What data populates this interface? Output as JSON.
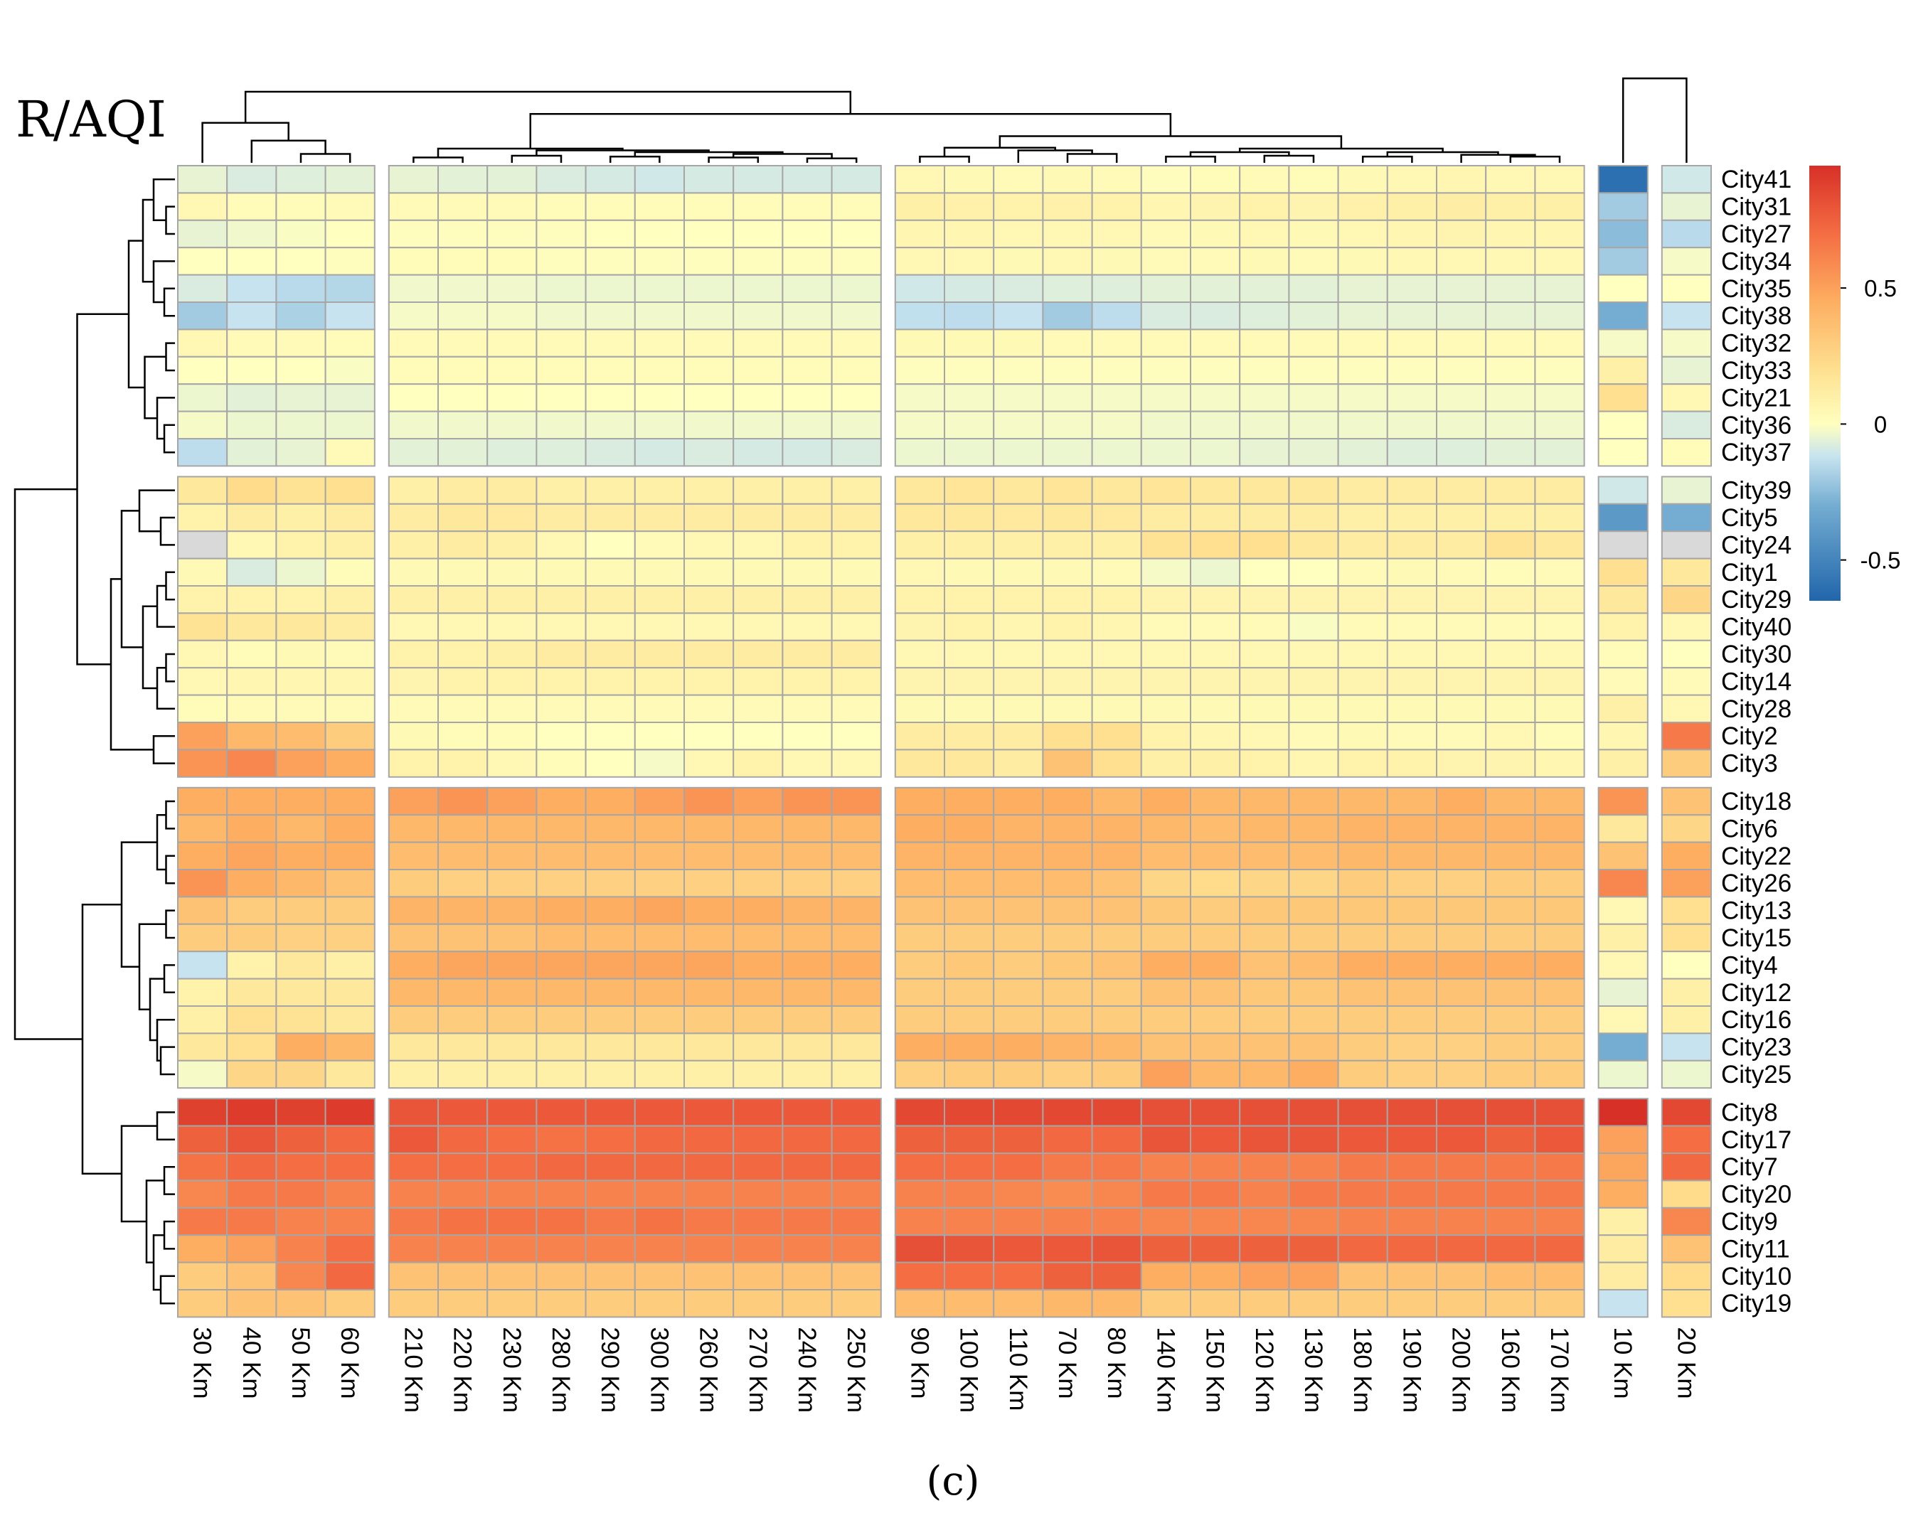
{
  "figure": {
    "title": "R/AQI",
    "caption": "(c)"
  },
  "chart_data": {
    "type": "heatmap",
    "title": "R/AQI",
    "rows": [
      "City41",
      "City31",
      "City27",
      "City34",
      "City35",
      "City38",
      "City32",
      "City33",
      "City21",
      "City36",
      "City37",
      "City39",
      "City5",
      "City24",
      "City1",
      "City29",
      "City40",
      "City30",
      "City14",
      "City28",
      "City2",
      "City3",
      "City18",
      "City6",
      "City22",
      "City26",
      "City13",
      "City15",
      "City4",
      "City12",
      "City16",
      "City23",
      "City25",
      "City8",
      "City17",
      "City7",
      "City20",
      "City9",
      "City11",
      "City10",
      "City19"
    ],
    "row_groups": [
      11,
      11,
      11,
      8
    ],
    "columns": [
      "30 Km",
      "40 Km",
      "50 Km",
      "60 Km",
      "210 Km",
      "220 Km",
      "230 Km",
      "280 Km",
      "290 Km",
      "300 Km",
      "260 Km",
      "270 Km",
      "240 Km",
      "250 Km",
      "90 Km",
      "100 Km",
      "110 Km",
      "70 Km",
      "80 Km",
      "140 Km",
      "150 Km",
      "120 Km",
      "130 Km",
      "180 Km",
      "190 Km",
      "200 Km",
      "160 Km",
      "170 Km",
      "10 Km",
      "20 Km"
    ],
    "column_groups": [
      4,
      10,
      14,
      1,
      1
    ],
    "color_scale": {
      "min": -0.65,
      "max": 0.95,
      "stops": [
        {
          "value": -0.65,
          "color": "#2166ac"
        },
        {
          "value": -0.3,
          "color": "#74add1"
        },
        {
          "value": -0.12,
          "color": "#c6e3ef"
        },
        {
          "value": 0,
          "color": "#ffffbf"
        },
        {
          "value": 0.2,
          "color": "#fee090"
        },
        {
          "value": 0.45,
          "color": "#fdae61"
        },
        {
          "value": 0.7,
          "color": "#f46d43"
        },
        {
          "value": 0.95,
          "color": "#d73027"
        }
      ],
      "missing_color": "#d9d9d9",
      "legend_ticks": [
        "0.5",
        "0",
        "-0.5"
      ]
    },
    "values": [
      [
        -0.05,
        -0.08,
        -0.07,
        -0.06,
        -0.05,
        -0.06,
        -0.06,
        -0.08,
        -0.09,
        -0.1,
        -0.09,
        -0.09,
        -0.09,
        -0.09,
        0.05,
        0.04,
        0.03,
        0.04,
        0.03,
        0.01,
        0.02,
        0.03,
        0.02,
        0.04,
        0.05,
        0.06,
        0.05,
        0.05,
        -0.6,
        -0.1
      ],
      [
        0.05,
        0.02,
        0.02,
        0.03,
        0.03,
        0.03,
        0.03,
        0.02,
        0.02,
        0.02,
        0.02,
        0.02,
        0.02,
        0.02,
        0.1,
        0.09,
        0.08,
        0.09,
        0.08,
        0.06,
        0.07,
        0.08,
        0.07,
        0.09,
        0.1,
        0.11,
        0.1,
        0.1,
        -0.2,
        -0.05
      ],
      [
        -0.05,
        -0.03,
        -0.01,
        0,
        0.01,
        0.01,
        0.01,
        0.01,
        0,
        0,
        0,
        0,
        0,
        0,
        0.06,
        0.06,
        0.05,
        0.05,
        0.05,
        0.03,
        0.04,
        0.05,
        0.04,
        0.05,
        0.06,
        0.07,
        0.06,
        0.06,
        -0.25,
        -0.15
      ],
      [
        0,
        0,
        0,
        0.01,
        0.02,
        0.02,
        0.02,
        0.01,
        0.01,
        0.01,
        0.01,
        0.01,
        0.01,
        0.01,
        0.05,
        0.05,
        0.04,
        0.05,
        0.04,
        0.03,
        0.03,
        0.04,
        0.03,
        0.04,
        0.05,
        0.05,
        0.05,
        0.05,
        -0.2,
        -0.02
      ],
      [
        -0.08,
        -0.12,
        -0.15,
        -0.16,
        -0.03,
        -0.03,
        -0.03,
        -0.04,
        -0.04,
        -0.04,
        -0.04,
        -0.04,
        -0.04,
        -0.04,
        -0.1,
        -0.09,
        -0.08,
        -0.07,
        -0.07,
        -0.06,
        -0.06,
        -0.06,
        -0.06,
        -0.05,
        -0.05,
        -0.05,
        -0.05,
        -0.05,
        0,
        0
      ],
      [
        -0.2,
        -0.12,
        -0.18,
        -0.12,
        -0.02,
        -0.02,
        -0.02,
        -0.03,
        -0.03,
        -0.03,
        -0.03,
        -0.03,
        -0.03,
        -0.03,
        -0.13,
        -0.14,
        -0.12,
        -0.2,
        -0.14,
        -0.08,
        -0.08,
        -0.07,
        -0.06,
        -0.05,
        -0.05,
        -0.05,
        -0.05,
        -0.05,
        -0.3,
        -0.12
      ],
      [
        0.05,
        0.03,
        0.03,
        0.02,
        0.03,
        0.03,
        0.03,
        0.03,
        0.03,
        0.03,
        0.03,
        0.03,
        0.03,
        0.03,
        0.04,
        0.04,
        0.04,
        0.03,
        0.03,
        0.03,
        0.03,
        0.03,
        0.03,
        0.03,
        0.03,
        0.03,
        0.03,
        0.03,
        -0.02,
        -0.02
      ],
      [
        0,
        0,
        0,
        -0.01,
        0.02,
        0.02,
        0.02,
        0.02,
        0.02,
        0.02,
        0.02,
        0.02,
        0.02,
        0.02,
        0.01,
        0.01,
        0.01,
        0.01,
        0.01,
        0.01,
        0.01,
        0.01,
        0.01,
        0.01,
        0.01,
        0.01,
        0.01,
        0.01,
        0.1,
        -0.05
      ],
      [
        -0.04,
        -0.06,
        -0.05,
        -0.05,
        0,
        0,
        0,
        0,
        0,
        0,
        0,
        0,
        0,
        0,
        -0.02,
        -0.02,
        -0.02,
        -0.02,
        -0.02,
        -0.02,
        -0.02,
        -0.02,
        -0.02,
        -0.02,
        -0.02,
        -0.02,
        -0.02,
        -0.02,
        0.2,
        0.05
      ],
      [
        -0.02,
        -0.04,
        -0.04,
        -0.04,
        -0.03,
        -0.03,
        -0.03,
        -0.03,
        -0.03,
        -0.03,
        -0.03,
        -0.03,
        -0.03,
        -0.03,
        -0.02,
        -0.02,
        -0.02,
        -0.02,
        -0.02,
        -0.03,
        -0.03,
        -0.03,
        -0.03,
        -0.03,
        -0.03,
        -0.03,
        -0.03,
        -0.03,
        0,
        -0.08
      ],
      [
        -0.14,
        -0.06,
        -0.05,
        0.03,
        -0.06,
        -0.06,
        -0.07,
        -0.07,
        -0.08,
        -0.09,
        -0.08,
        -0.09,
        -0.09,
        -0.08,
        -0.04,
        -0.04,
        -0.04,
        -0.04,
        -0.04,
        -0.04,
        -0.04,
        -0.05,
        -0.05,
        -0.06,
        -0.07,
        -0.07,
        -0.06,
        -0.06,
        0,
        0.02
      ],
      [
        0.15,
        0.22,
        0.18,
        0.2,
        0.1,
        0.12,
        0.12,
        0.1,
        0.1,
        0.1,
        0.1,
        0.1,
        0.1,
        0.1,
        0.15,
        0.17,
        0.15,
        0.17,
        0.15,
        0.17,
        0.15,
        0.15,
        0.15,
        0.12,
        0.12,
        0.12,
        0.12,
        0.12,
        -0.1,
        -0.05
      ],
      [
        0.08,
        0.12,
        0.1,
        0.12,
        0.12,
        0.15,
        0.14,
        0.12,
        0.12,
        0.12,
        0.12,
        0.12,
        0.12,
        0.12,
        0.15,
        0.15,
        0.14,
        0.15,
        0.14,
        0.12,
        0.12,
        0.12,
        0.12,
        0.1,
        0.1,
        0.1,
        0.1,
        0.1,
        -0.4,
        -0.3
      ],
      [
        null,
        0.05,
        0.08,
        0.1,
        0.1,
        0.12,
        0.1,
        0.05,
        0,
        0.03,
        0.05,
        0.05,
        0.08,
        0.08,
        0.1,
        0.1,
        0.1,
        0.1,
        0.1,
        0.18,
        0.2,
        0.2,
        0.15,
        0.12,
        0.12,
        0.12,
        0.18,
        0.15,
        null,
        null
      ],
      [
        0.04,
        -0.08,
        -0.04,
        0.02,
        0.04,
        0.04,
        0.04,
        0.04,
        0.04,
        0.04,
        0.04,
        0.04,
        0.04,
        0.04,
        0.05,
        0.04,
        0.04,
        0.04,
        0.03,
        -0.02,
        -0.04,
        0,
        0,
        0.03,
        0.04,
        0.03,
        0.02,
        0.03,
        0.2,
        0.15
      ],
      [
        0.08,
        0.08,
        0.08,
        0.1,
        0.1,
        0.1,
        0.1,
        0.1,
        0.1,
        0.1,
        0.1,
        0.1,
        0.1,
        0.1,
        0.08,
        0.08,
        0.08,
        0.08,
        0.08,
        0.07,
        0.07,
        0.07,
        0.07,
        0.07,
        0.07,
        0.07,
        0.07,
        0.07,
        0.15,
        0.25
      ],
      [
        0.18,
        0.15,
        0.15,
        0.12,
        0.05,
        0.05,
        0.05,
        0.05,
        0.05,
        0.05,
        0.05,
        0.05,
        0.05,
        0.05,
        0.07,
        0.08,
        0.06,
        0.08,
        0.06,
        0.03,
        0.03,
        0.03,
        -0.01,
        0.03,
        0.03,
        0.03,
        0.03,
        0.03,
        0.08,
        0.05
      ],
      [
        0.05,
        0.02,
        0.04,
        0.03,
        0.08,
        0.08,
        0.1,
        0.12,
        0.12,
        0.12,
        0.12,
        0.12,
        0.12,
        0.12,
        0.05,
        0.05,
        0.05,
        0.05,
        0.05,
        0.05,
        0.05,
        0.05,
        0.05,
        0.05,
        0.05,
        0.05,
        0.05,
        0.05,
        0.02,
        0
      ],
      [
        0.05,
        0.06,
        0.06,
        0.06,
        0.07,
        0.08,
        0.08,
        0.08,
        0.08,
        0.08,
        0.08,
        0.08,
        0.08,
        0.08,
        0.07,
        0.07,
        0.07,
        0.07,
        0.07,
        0.07,
        0.07,
        0.07,
        0.07,
        0.07,
        0.07,
        0.07,
        0.07,
        0.07,
        0.03,
        0.03
      ],
      [
        0.02,
        0.03,
        0.03,
        0.03,
        0.03,
        0.03,
        0.03,
        0.03,
        0.03,
        0.03,
        0.03,
        0.03,
        0.03,
        0.03,
        0.04,
        0.04,
        0.04,
        0.04,
        0.04,
        0.04,
        0.04,
        0.04,
        0.04,
        0.04,
        0.04,
        0.04,
        0.04,
        0.04,
        0.1,
        0.05
      ],
      [
        0.5,
        0.4,
        0.38,
        0.3,
        0.04,
        0.02,
        0.02,
        0,
        0,
        0,
        0,
        0,
        0,
        0,
        0.12,
        0.12,
        0.12,
        0.2,
        0.2,
        0.08,
        0.06,
        0.05,
        0.03,
        0.04,
        0.03,
        0.03,
        0.05,
        0.02,
        0.06,
        0.65
      ],
      [
        0.55,
        0.6,
        0.5,
        0.45,
        0.08,
        0.08,
        0.05,
        0.02,
        0,
        -0.02,
        0.05,
        0.08,
        0.05,
        0.05,
        0.15,
        0.15,
        0.12,
        0.35,
        0.2,
        0.1,
        0.1,
        0.08,
        0.06,
        0.08,
        0.08,
        0.07,
        0.07,
        0.06,
        0.1,
        0.3
      ],
      [
        0.45,
        0.45,
        0.45,
        0.45,
        0.5,
        0.55,
        0.5,
        0.45,
        0.45,
        0.5,
        0.55,
        0.5,
        0.55,
        0.55,
        0.45,
        0.45,
        0.45,
        0.45,
        0.4,
        0.45,
        0.4,
        0.4,
        0.4,
        0.4,
        0.4,
        0.45,
        0.4,
        0.4,
        0.55,
        0.35
      ],
      [
        0.4,
        0.45,
        0.4,
        0.45,
        0.4,
        0.4,
        0.4,
        0.4,
        0.4,
        0.4,
        0.4,
        0.4,
        0.4,
        0.4,
        0.45,
        0.45,
        0.42,
        0.42,
        0.42,
        0.4,
        0.38,
        0.4,
        0.4,
        0.42,
        0.42,
        0.42,
        0.42,
        0.42,
        0.15,
        0.25
      ],
      [
        0.45,
        0.48,
        0.45,
        0.45,
        0.38,
        0.38,
        0.38,
        0.38,
        0.38,
        0.38,
        0.38,
        0.38,
        0.38,
        0.38,
        0.42,
        0.42,
        0.42,
        0.42,
        0.42,
        0.38,
        0.38,
        0.38,
        0.38,
        0.4,
        0.4,
        0.4,
        0.4,
        0.4,
        0.35,
        0.45
      ],
      [
        0.55,
        0.45,
        0.4,
        0.35,
        0.3,
        0.28,
        0.28,
        0.28,
        0.28,
        0.28,
        0.28,
        0.28,
        0.28,
        0.28,
        0.38,
        0.38,
        0.38,
        0.38,
        0.35,
        0.25,
        0.22,
        0.25,
        0.25,
        0.3,
        0.28,
        0.28,
        0.3,
        0.3,
        0.6,
        0.5
      ],
      [
        0.35,
        0.3,
        0.3,
        0.3,
        0.42,
        0.42,
        0.42,
        0.45,
        0.45,
        0.48,
        0.45,
        0.45,
        0.42,
        0.42,
        0.35,
        0.35,
        0.35,
        0.35,
        0.35,
        0.32,
        0.3,
        0.32,
        0.32,
        0.32,
        0.32,
        0.32,
        0.32,
        0.32,
        0.05,
        0.2
      ],
      [
        0.3,
        0.3,
        0.28,
        0.28,
        0.35,
        0.35,
        0.35,
        0.38,
        0.38,
        0.38,
        0.38,
        0.38,
        0.38,
        0.38,
        0.3,
        0.3,
        0.3,
        0.3,
        0.3,
        0.3,
        0.3,
        0.3,
        0.3,
        0.3,
        0.3,
        0.3,
        0.3,
        0.3,
        0.1,
        0.2
      ],
      [
        -0.12,
        0.08,
        0.15,
        0.1,
        0.45,
        0.48,
        0.48,
        0.48,
        0.48,
        0.48,
        0.48,
        0.45,
        0.45,
        0.45,
        0.3,
        0.32,
        0.3,
        0.32,
        0.35,
        0.45,
        0.45,
        0.35,
        0.38,
        0.45,
        0.45,
        0.45,
        0.45,
        0.45,
        0.05,
        0
      ],
      [
        0.08,
        0.15,
        0.15,
        0.15,
        0.4,
        0.4,
        0.4,
        0.4,
        0.4,
        0.4,
        0.4,
        0.4,
        0.4,
        0.4,
        0.3,
        0.3,
        0.3,
        0.3,
        0.3,
        0.35,
        0.35,
        0.32,
        0.32,
        0.35,
        0.35,
        0.35,
        0.35,
        0.35,
        -0.05,
        0.1
      ],
      [
        0.1,
        0.2,
        0.18,
        0.15,
        0.3,
        0.3,
        0.3,
        0.3,
        0.3,
        0.3,
        0.3,
        0.3,
        0.3,
        0.3,
        0.3,
        0.3,
        0.3,
        0.3,
        0.3,
        0.3,
        0.3,
        0.3,
        0.3,
        0.3,
        0.3,
        0.3,
        0.3,
        0.3,
        0.05,
        0.1
      ],
      [
        0.15,
        0.2,
        0.45,
        0.4,
        0.15,
        0.15,
        0.15,
        0.15,
        0.15,
        0.15,
        0.15,
        0.15,
        0.15,
        0.15,
        0.45,
        0.45,
        0.45,
        0.42,
        0.4,
        0.35,
        0.35,
        0.35,
        0.35,
        0.3,
        0.28,
        0.28,
        0.3,
        0.3,
        -0.3,
        -0.12
      ],
      [
        -0.02,
        0.25,
        0.25,
        0.15,
        0.1,
        0.1,
        0.1,
        0.1,
        0.1,
        0.1,
        0.1,
        0.1,
        0.1,
        0.1,
        0.28,
        0.3,
        0.3,
        0.28,
        0.3,
        0.5,
        0.4,
        0.4,
        0.45,
        0.3,
        0.28,
        0.28,
        0.3,
        0.3,
        -0.04,
        -0.04
      ],
      [
        0.88,
        0.9,
        0.88,
        0.9,
        0.8,
        0.78,
        0.78,
        0.78,
        0.78,
        0.78,
        0.78,
        0.78,
        0.78,
        0.78,
        0.85,
        0.85,
        0.85,
        0.85,
        0.85,
        0.82,
        0.82,
        0.82,
        0.82,
        0.82,
        0.82,
        0.82,
        0.82,
        0.82,
        0.95,
        0.85
      ],
      [
        0.75,
        0.8,
        0.75,
        0.72,
        0.78,
        0.72,
        0.7,
        0.68,
        0.7,
        0.72,
        0.72,
        0.72,
        0.72,
        0.72,
        0.75,
        0.75,
        0.75,
        0.72,
        0.72,
        0.8,
        0.78,
        0.8,
        0.8,
        0.78,
        0.78,
        0.78,
        0.75,
        0.78,
        0.5,
        0.7
      ],
      [
        0.68,
        0.72,
        0.7,
        0.7,
        0.7,
        0.7,
        0.7,
        0.72,
        0.72,
        0.72,
        0.72,
        0.72,
        0.72,
        0.72,
        0.7,
        0.7,
        0.7,
        0.65,
        0.65,
        0.62,
        0.62,
        0.62,
        0.62,
        0.65,
        0.65,
        0.65,
        0.65,
        0.65,
        0.48,
        0.72
      ],
      [
        0.6,
        0.65,
        0.65,
        0.62,
        0.62,
        0.62,
        0.62,
        0.62,
        0.62,
        0.62,
        0.62,
        0.62,
        0.62,
        0.62,
        0.62,
        0.62,
        0.6,
        0.58,
        0.6,
        0.65,
        0.65,
        0.62,
        0.65,
        0.65,
        0.65,
        0.65,
        0.65,
        0.65,
        0.45,
        0.22
      ],
      [
        0.65,
        0.65,
        0.62,
        0.62,
        0.65,
        0.68,
        0.68,
        0.68,
        0.65,
        0.68,
        0.65,
        0.65,
        0.65,
        0.65,
        0.62,
        0.62,
        0.62,
        0.62,
        0.62,
        0.6,
        0.6,
        0.6,
        0.6,
        0.62,
        0.62,
        0.62,
        0.62,
        0.62,
        0.1,
        0.6
      ],
      [
        0.45,
        0.5,
        0.62,
        0.7,
        0.62,
        0.62,
        0.62,
        0.62,
        0.62,
        0.62,
        0.62,
        0.62,
        0.62,
        0.62,
        0.82,
        0.8,
        0.78,
        0.78,
        0.8,
        0.75,
        0.75,
        0.75,
        0.75,
        0.72,
        0.72,
        0.72,
        0.72,
        0.72,
        0.12,
        0.35
      ],
      [
        0.3,
        0.35,
        0.6,
        0.72,
        0.35,
        0.35,
        0.35,
        0.35,
        0.35,
        0.35,
        0.35,
        0.35,
        0.35,
        0.35,
        0.7,
        0.7,
        0.7,
        0.75,
        0.75,
        0.45,
        0.45,
        0.5,
        0.5,
        0.35,
        0.35,
        0.35,
        0.38,
        0.38,
        0.12,
        0.22
      ],
      [
        0.3,
        0.35,
        0.35,
        0.3,
        0.3,
        0.3,
        0.3,
        0.3,
        0.3,
        0.3,
        0.3,
        0.3,
        0.3,
        0.3,
        0.38,
        0.38,
        0.38,
        0.4,
        0.4,
        0.3,
        0.3,
        0.3,
        0.3,
        0.3,
        0.3,
        0.3,
        0.3,
        0.3,
        -0.12,
        0.2
      ]
    ]
  }
}
